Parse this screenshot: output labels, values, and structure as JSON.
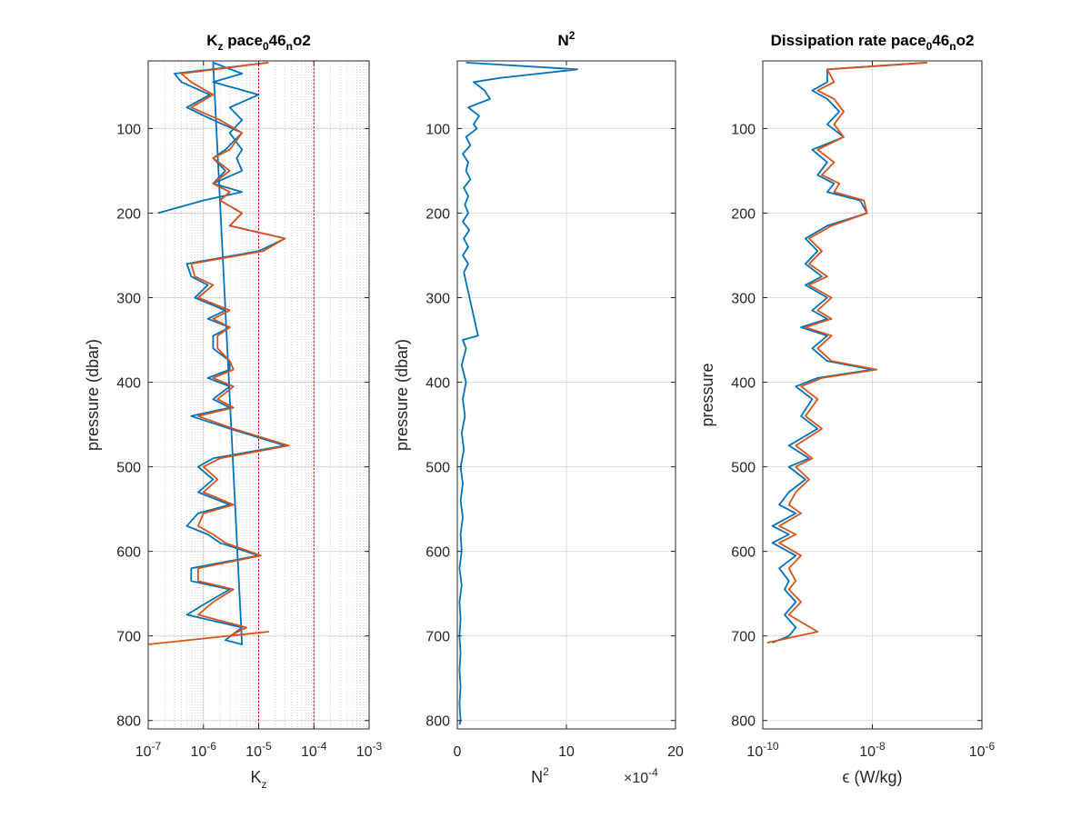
{
  "colors": {
    "blue": "#0072BD",
    "orange": "#D95319",
    "grid": "#dcdcdc",
    "red_ref": "#cc0000",
    "axis": "#262626"
  },
  "chart_data": [
    {
      "type": "line",
      "title_parts": [
        "K",
        "z",
        " pace",
        "0",
        "46",
        "n",
        "o2"
      ],
      "xlabel_parts": [
        "K",
        "z"
      ],
      "ylabel": "pressure (dbar)",
      "xscale": "log",
      "xlim": [
        1e-07,
        0.001
      ],
      "ylim": [
        20,
        810
      ],
      "y_reversed": true,
      "xticks": [
        {
          "mant": "10",
          "exp": "-7"
        },
        {
          "mant": "10",
          "exp": "-6"
        },
        {
          "mant": "10",
          "exp": "-5"
        },
        {
          "mant": "10",
          "exp": "-4"
        },
        {
          "mant": "10",
          "exp": "-3"
        }
      ],
      "yticks": [
        "100",
        "200",
        "300",
        "400",
        "500",
        "600",
        "700",
        "800"
      ],
      "grid": "minor-dotted",
      "reference_lines_x": [
        1e-05,
        0.0001
      ],
      "series": [
        {
          "color": "blue",
          "x": [
            1.5e-05,
            3e-07,
            4e-07,
            1.3e-06,
            5e-07,
            1.5e-06,
            5e-06,
            2.5e-06,
            1.5e-06,
            2.5e-06,
            1.5e-06,
            3e-06,
            2e-06,
            5e-06,
            3e-06,
            3e-05,
            1e-05,
            5e-07,
            6e-07,
            1.2e-06,
            7e-07,
            2.5e-06,
            1.2e-06,
            3e-06,
            1.5e-06,
            1.5e-06,
            3e-06,
            3e-06,
            1.2e-06,
            3e-06,
            1.5e-06,
            3e-06,
            6e-07,
            3e-06,
            3e-05,
            1.5e-06,
            8e-07,
            1.5e-06,
            8e-07,
            3e-06,
            8e-07,
            5e-07,
            1.2e-06,
            2e-06,
            1e-05,
            6e-07,
            6e-07,
            3e-06,
            1.2e-06,
            5e-07,
            5e-06,
            2.5e-06,
            5e-06,
            1.5e-06,
            5e-06,
            1.5e-06,
            1e-05,
            3e-06,
            5e-06,
            3e-06,
            5e-06,
            4e-06,
            5e-06,
            1.5e-06,
            5e-06,
            1e-06,
            1.5e-07
          ],
          "y": [
            22,
            35,
            45,
            60,
            75,
            90,
            105,
            125,
            135,
            150,
            165,
            175,
            185,
            200,
            215,
            230,
            245,
            260,
            275,
            285,
            300,
            315,
            325,
            335,
            345,
            360,
            375,
            385,
            395,
            405,
            420,
            430,
            440,
            455,
            475,
            490,
            500,
            515,
            530,
            545,
            555,
            570,
            580,
            590,
            605,
            620,
            635,
            645,
            660,
            675,
            690,
            705,
            710,
            22,
            35,
            45,
            60,
            75,
            90,
            105,
            125,
            135,
            150,
            165,
            175,
            185,
            200
          ]
        },
        {
          "color": "orange",
          "x": [
            1.5e-05,
            4e-07,
            6e-07,
            1.5e-06,
            6e-07,
            2e-06,
            5e-06,
            3e-06,
            1.5e-06,
            3e-06,
            1.5e-06,
            3e-06,
            2e-06,
            5e-06,
            3e-06,
            3e-05,
            1.2e-05,
            6e-07,
            7e-07,
            1.5e-06,
            8e-07,
            3e-06,
            1.5e-06,
            3e-06,
            1.8e-06,
            1.8e-06,
            3e-06,
            3.5e-06,
            1.5e-06,
            3.5e-06,
            1.8e-06,
            3.5e-06,
            8e-07,
            3.5e-06,
            3.5e-05,
            2e-06,
            1e-06,
            1.8e-06,
            1e-06,
            3.5e-06,
            1e-06,
            8e-07,
            1.5e-06,
            2.5e-06,
            1.1e-05,
            8e-07,
            8e-07,
            3.5e-06,
            1.5e-06,
            8e-07,
            6e-06,
            3e-06,
            1.5e-05,
            1e-07
          ],
          "y": [
            22,
            35,
            45,
            60,
            75,
            90,
            105,
            125,
            135,
            150,
            165,
            175,
            185,
            200,
            215,
            230,
            245,
            260,
            275,
            285,
            300,
            315,
            325,
            335,
            345,
            360,
            375,
            385,
            395,
            405,
            420,
            430,
            440,
            455,
            475,
            490,
            500,
            515,
            530,
            545,
            555,
            570,
            580,
            590,
            605,
            620,
            635,
            645,
            660,
            675,
            690,
            700,
            695,
            710
          ]
        }
      ]
    },
    {
      "type": "line",
      "title_parts": [
        "N",
        "2"
      ],
      "xlabel_parts": [
        "N",
        "2"
      ],
      "ylabel": "pressure (dbar)",
      "xscale": "linear",
      "xlim": [
        0,
        20
      ],
      "ylim": [
        20,
        810
      ],
      "y_reversed": true,
      "x_multiplier_parts": [
        "×10",
        "-4"
      ],
      "xticks": [
        {
          "mant": "0",
          "exp": ""
        },
        {
          "mant": "10",
          "exp": ""
        },
        {
          "mant": "20",
          "exp": ""
        }
      ],
      "yticks": [
        "100",
        "200",
        "300",
        "400",
        "500",
        "600",
        "700",
        "800"
      ],
      "grid": "major",
      "series": [
        {
          "color": "blue",
          "x": [
            0.8,
            11,
            4,
            1.5,
            2.5,
            3,
            1,
            2,
            1.5,
            1.8,
            0.8,
            1.2,
            0.5,
            1,
            0.8,
            1.2,
            0.6,
            1,
            0.7,
            1,
            0.5,
            1.1,
            0.6,
            1,
            0.5,
            1,
            0.6,
            1.9,
            0.5,
            0.8,
            0.4,
            0.8,
            0.5,
            0.7,
            0.4,
            0.6,
            0.3,
            0.5,
            0.3,
            0.5,
            0.3,
            0.4,
            0.2,
            0.4,
            0.2,
            0.3,
            0.2,
            0.3,
            0.2,
            0.3,
            0.2,
            0.3,
            0.2
          ],
          "y": [
            22,
            30,
            40,
            45,
            55,
            65,
            75,
            85,
            95,
            100,
            110,
            120,
            130,
            140,
            150,
            160,
            170,
            180,
            190,
            200,
            210,
            220,
            230,
            240,
            250,
            260,
            270,
            345,
            350,
            360,
            380,
            400,
            420,
            440,
            460,
            480,
            500,
            520,
            540,
            560,
            580,
            600,
            620,
            640,
            660,
            680,
            700,
            720,
            740,
            760,
            780,
            800,
            805
          ]
        }
      ]
    },
    {
      "type": "line",
      "title_parts": [
        "Dissipation rate pace",
        "0",
        "46",
        "n",
        "o2"
      ],
      "xlabel_parts": [
        "ϵ (W/kg)"
      ],
      "ylabel": "pressure",
      "xscale": "log",
      "xlim": [
        1e-10,
        1e-06
      ],
      "ylim": [
        20,
        810
      ],
      "y_reversed": true,
      "xticks": [
        {
          "mant": "10",
          "exp": "-10"
        },
        {
          "mant": "10",
          "exp": "-8"
        },
        {
          "mant": "10",
          "exp": "-6"
        }
      ],
      "yticks": [
        "100",
        "200",
        "300",
        "400",
        "500",
        "600",
        "700",
        "800"
      ],
      "grid": "major",
      "series": [
        {
          "color": "blue",
          "x": [
            1e-07,
            1.5e-09,
            1.5e-09,
            8e-10,
            1.5e-09,
            2.5e-09,
            1.5e-09,
            3e-09,
            8e-10,
            1.5e-09,
            1e-09,
            2e-09,
            1.5e-09,
            6e-09,
            8e-09,
            1.5e-09,
            6e-10,
            1e-09,
            6e-10,
            1.2e-09,
            6e-10,
            1.5e-09,
            8e-10,
            1.5e-09,
            5e-10,
            1.5e-09,
            8e-10,
            1.5e-09,
            1e-08,
            1e-09,
            4e-10,
            8e-10,
            5e-10,
            1e-09,
            3e-10,
            7e-10,
            3e-10,
            6e-10,
            3e-10,
            2e-10,
            4e-10,
            1.5e-10,
            3e-10,
            1.5e-10,
            4e-10,
            2e-10,
            3e-10,
            2.5e-10,
            4e-10,
            2.5e-10,
            4e-10,
            3e-10,
            1.5e-10
          ],
          "y": [
            22,
            30,
            45,
            55,
            65,
            80,
            95,
            110,
            125,
            140,
            155,
            165,
            175,
            185,
            200,
            215,
            230,
            245,
            260,
            275,
            285,
            300,
            315,
            325,
            335,
            345,
            360,
            375,
            385,
            395,
            405,
            420,
            440,
            455,
            475,
            490,
            500,
            515,
            530,
            545,
            555,
            570,
            580,
            590,
            605,
            620,
            635,
            645,
            660,
            675,
            690,
            700,
            708
          ]
        },
        {
          "color": "orange",
          "x": [
            1e-07,
            1.5e-09,
            2e-09,
            1e-09,
            2e-09,
            3e-09,
            2e-09,
            3e-09,
            1e-09,
            2e-09,
            1.2e-09,
            2.5e-09,
            2e-09,
            7e-09,
            8e-09,
            1.8e-09,
            7e-10,
            1.2e-09,
            7e-10,
            1.5e-09,
            7e-10,
            1.8e-09,
            1e-09,
            1.8e-09,
            6e-10,
            1.8e-09,
            1e-09,
            1.8e-09,
            1.2e-08,
            1.2e-09,
            5e-10,
            1e-09,
            6e-10,
            1.2e-09,
            4e-10,
            8e-10,
            4e-10,
            7e-10,
            4e-10,
            3e-10,
            5e-10,
            2e-10,
            4e-10,
            2e-10,
            5e-10,
            3e-10,
            4e-10,
            3e-10,
            5e-10,
            3e-10,
            1e-09,
            2e-10,
            1.2e-10
          ],
          "y": [
            22,
            30,
            45,
            55,
            65,
            80,
            95,
            110,
            125,
            140,
            155,
            165,
            175,
            185,
            200,
            215,
            230,
            245,
            260,
            275,
            285,
            300,
            315,
            325,
            335,
            345,
            360,
            375,
            385,
            395,
            405,
            420,
            440,
            455,
            475,
            490,
            500,
            515,
            530,
            545,
            555,
            570,
            580,
            590,
            605,
            620,
            635,
            645,
            660,
            675,
            695,
            705,
            708
          ]
        }
      ]
    }
  ]
}
